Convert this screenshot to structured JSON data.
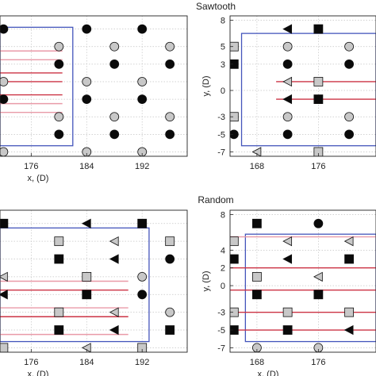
{
  "figure": {
    "section_titles": [
      "Sawtooth",
      "Random"
    ]
  },
  "colors": {
    "gray_fill": "#c8c8c8",
    "black_fill": "#0a0a0a",
    "red_line": "#cc3344",
    "pink_line": "#e99aa8",
    "boundary": "#4455bb"
  },
  "chart_data": [
    {
      "id": "sawtooth_left",
      "type": "scatter",
      "xlabel": "x, (D)",
      "ylabel": "",
      "xticks": [
        176,
        184,
        192
      ],
      "yticks": [],
      "xlim": [
        171.5,
        198.5
      ],
      "ylim": [
        -7.5,
        8.5
      ],
      "grid": true,
      "boundary_box": {
        "x": [
          171.5,
          182
        ],
        "y": [
          -6.3,
          7.2
        ]
      },
      "wake_lines": [
        {
          "y": 4.5,
          "x": [
            171.5,
            180.5
          ],
          "style": "pink"
        },
        {
          "y": 3.5,
          "x": [
            171.5,
            180.5
          ],
          "style": "pink"
        },
        {
          "y": 2.0,
          "x": [
            171.5,
            180.5
          ],
          "style": "red"
        },
        {
          "y": 1.0,
          "x": [
            171.5,
            180.5
          ],
          "style": "red"
        },
        {
          "y": -0.5,
          "x": [
            171.5,
            180.5
          ],
          "style": "red"
        },
        {
          "y": -1.5,
          "x": [
            171.5,
            180.5
          ],
          "style": "pink"
        },
        {
          "y": -2.5,
          "x": [
            171.5,
            180.5
          ],
          "style": "pink"
        }
      ],
      "points": [
        {
          "x": 172,
          "y": 7,
          "marker": "circle",
          "fill": "black"
        },
        {
          "x": 184,
          "y": 7,
          "marker": "circle",
          "fill": "black"
        },
        {
          "x": 192,
          "y": 7,
          "marker": "circle",
          "fill": "black"
        },
        {
          "x": 180,
          "y": 5,
          "marker": "circle",
          "fill": "gray"
        },
        {
          "x": 188,
          "y": 5,
          "marker": "circle",
          "fill": "gray"
        },
        {
          "x": 196,
          "y": 5,
          "marker": "circle",
          "fill": "gray"
        },
        {
          "x": 180,
          "y": 3,
          "marker": "circle",
          "fill": "black"
        },
        {
          "x": 188,
          "y": 3,
          "marker": "circle",
          "fill": "black"
        },
        {
          "x": 196,
          "y": 3,
          "marker": "circle",
          "fill": "black"
        },
        {
          "x": 172,
          "y": 1,
          "marker": "circle",
          "fill": "gray"
        },
        {
          "x": 184,
          "y": 1,
          "marker": "circle",
          "fill": "gray"
        },
        {
          "x": 192,
          "y": 1,
          "marker": "circle",
          "fill": "gray"
        },
        {
          "x": 172,
          "y": -1,
          "marker": "circle",
          "fill": "black"
        },
        {
          "x": 184,
          "y": -1,
          "marker": "circle",
          "fill": "black"
        },
        {
          "x": 192,
          "y": -1,
          "marker": "circle",
          "fill": "black"
        },
        {
          "x": 180,
          "y": -3,
          "marker": "circle",
          "fill": "gray"
        },
        {
          "x": 188,
          "y": -3,
          "marker": "circle",
          "fill": "gray"
        },
        {
          "x": 196,
          "y": -3,
          "marker": "circle",
          "fill": "gray"
        },
        {
          "x": 180,
          "y": -5,
          "marker": "circle",
          "fill": "black"
        },
        {
          "x": 188,
          "y": -5,
          "marker": "circle",
          "fill": "black"
        },
        {
          "x": 196,
          "y": -5,
          "marker": "circle",
          "fill": "black"
        },
        {
          "x": 172,
          "y": -7,
          "marker": "circle",
          "fill": "gray"
        },
        {
          "x": 184,
          "y": -7,
          "marker": "circle",
          "fill": "gray"
        },
        {
          "x": 192,
          "y": -7,
          "marker": "circle",
          "fill": "gray"
        }
      ]
    },
    {
      "id": "sawtooth_right",
      "type": "scatter",
      "xlabel": "",
      "ylabel": "y, (D)",
      "xticks": [
        168,
        176
      ],
      "yticks": [
        8,
        5,
        3,
        0,
        -3,
        -5,
        -7
      ],
      "xlim": [
        164.5,
        183.5
      ],
      "ylim": [
        -7.5,
        8.5
      ],
      "grid": true,
      "boundary_box": {
        "x": [
          166,
          183.5
        ],
        "y": [
          -6.3,
          6.5
        ]
      },
      "wake_lines": [
        {
          "y": 1.0,
          "x": [
            170.5,
            183.5
          ],
          "style": "red"
        },
        {
          "y": -1.0,
          "x": [
            170.5,
            183.5
          ],
          "style": "red"
        }
      ],
      "points": [
        {
          "x": 172,
          "y": 7,
          "marker": "triangle-left",
          "fill": "black"
        },
        {
          "x": 176,
          "y": 7,
          "marker": "square",
          "fill": "black"
        },
        {
          "x": 165,
          "y": 5,
          "marker": "square",
          "fill": "gray"
        },
        {
          "x": 172,
          "y": 5,
          "marker": "circle",
          "fill": "gray"
        },
        {
          "x": 180,
          "y": 5,
          "marker": "circle",
          "fill": "gray"
        },
        {
          "x": 165,
          "y": 3,
          "marker": "square",
          "fill": "black"
        },
        {
          "x": 172,
          "y": 3,
          "marker": "circle",
          "fill": "black"
        },
        {
          "x": 180,
          "y": 3,
          "marker": "circle",
          "fill": "black"
        },
        {
          "x": 172,
          "y": 1,
          "marker": "triangle-left",
          "fill": "gray"
        },
        {
          "x": 176,
          "y": 1,
          "marker": "square",
          "fill": "gray"
        },
        {
          "x": 172,
          "y": -1,
          "marker": "triangle-left",
          "fill": "black"
        },
        {
          "x": 176,
          "y": -1,
          "marker": "square",
          "fill": "black"
        },
        {
          "x": 165,
          "y": -3,
          "marker": "square",
          "fill": "gray"
        },
        {
          "x": 172,
          "y": -3,
          "marker": "circle",
          "fill": "gray"
        },
        {
          "x": 180,
          "y": -3,
          "marker": "circle",
          "fill": "gray"
        },
        {
          "x": 165,
          "y": -5,
          "marker": "circle",
          "fill": "black"
        },
        {
          "x": 172,
          "y": -5,
          "marker": "circle",
          "fill": "black"
        },
        {
          "x": 180,
          "y": -5,
          "marker": "circle",
          "fill": "black"
        },
        {
          "x": 168,
          "y": -7,
          "marker": "triangle-left",
          "fill": "gray"
        },
        {
          "x": 176,
          "y": -7,
          "marker": "square",
          "fill": "gray"
        }
      ]
    },
    {
      "id": "random_left",
      "type": "scatter",
      "xlabel": "x, (D)",
      "ylabel": "",
      "xticks": [
        176,
        184,
        192
      ],
      "yticks": [],
      "xlim": [
        171.5,
        198.5
      ],
      "ylim": [
        -7.5,
        8.5
      ],
      "grid": true,
      "boundary_box": {
        "x": [
          171.5,
          193
        ],
        "y": [
          -6.3,
          6.5
        ]
      },
      "wake_lines": [
        {
          "y": 0.5,
          "x": [
            171.5,
            190
          ],
          "style": "pink"
        },
        {
          "y": -0.5,
          "x": [
            171.5,
            190
          ],
          "style": "red"
        },
        {
          "y": -2.5,
          "x": [
            171.5,
            190
          ],
          "style": "pink"
        },
        {
          "y": -3.5,
          "x": [
            171.5,
            190
          ],
          "style": "red"
        },
        {
          "y": -5.5,
          "x": [
            171.5,
            190
          ],
          "style": "pink"
        }
      ],
      "points": [
        {
          "x": 172,
          "y": 7,
          "marker": "square",
          "fill": "black"
        },
        {
          "x": 184,
          "y": 7,
          "marker": "triangle-left",
          "fill": "black"
        },
        {
          "x": 192,
          "y": 7,
          "marker": "square",
          "fill": "black"
        },
        {
          "x": 180,
          "y": 5,
          "marker": "square",
          "fill": "gray"
        },
        {
          "x": 188,
          "y": 5,
          "marker": "triangle-left",
          "fill": "gray"
        },
        {
          "x": 196,
          "y": 5,
          "marker": "square",
          "fill": "gray"
        },
        {
          "x": 180,
          "y": 3,
          "marker": "square",
          "fill": "black"
        },
        {
          "x": 188,
          "y": 3,
          "marker": "triangle-left",
          "fill": "black"
        },
        {
          "x": 196,
          "y": 3,
          "marker": "circle",
          "fill": "black"
        },
        {
          "x": 172,
          "y": 1,
          "marker": "triangle-left",
          "fill": "gray"
        },
        {
          "x": 184,
          "y": 1,
          "marker": "square",
          "fill": "gray"
        },
        {
          "x": 192,
          "y": 1,
          "marker": "circle",
          "fill": "gray"
        },
        {
          "x": 172,
          "y": -1,
          "marker": "triangle-left",
          "fill": "black"
        },
        {
          "x": 184,
          "y": -1,
          "marker": "square",
          "fill": "black"
        },
        {
          "x": 192,
          "y": -1,
          "marker": "circle",
          "fill": "black"
        },
        {
          "x": 180,
          "y": -3,
          "marker": "square",
          "fill": "gray"
        },
        {
          "x": 188,
          "y": -3,
          "marker": "triangle-left",
          "fill": "gray"
        },
        {
          "x": 196,
          "y": -3,
          "marker": "circle",
          "fill": "gray"
        },
        {
          "x": 180,
          "y": -5,
          "marker": "square",
          "fill": "black"
        },
        {
          "x": 188,
          "y": -5,
          "marker": "triangle-left",
          "fill": "black"
        },
        {
          "x": 196,
          "y": -5,
          "marker": "square",
          "fill": "black"
        },
        {
          "x": 172,
          "y": -7,
          "marker": "square",
          "fill": "gray"
        },
        {
          "x": 184,
          "y": -7,
          "marker": "triangle-left",
          "fill": "gray"
        },
        {
          "x": 192,
          "y": -7,
          "marker": "square",
          "fill": "gray"
        }
      ]
    },
    {
      "id": "random_right",
      "type": "scatter",
      "xlabel": "x, (D)",
      "ylabel": "y, (D)",
      "xticks": [
        168,
        176
      ],
      "yticks": [
        8,
        4,
        2,
        0,
        -3,
        -5,
        -7
      ],
      "xlim": [
        164.5,
        183.5
      ],
      "ylim": [
        -7.5,
        8.5
      ],
      "grid": true,
      "boundary_box": {
        "x": [
          166.5,
          183.5
        ],
        "y": [
          -6.3,
          5.8
        ]
      },
      "wake_lines": [
        {
          "y": 5.5,
          "x": [
            164.5,
            183.5
          ],
          "style": "pink"
        },
        {
          "y": 2.0,
          "x": [
            164.5,
            183.5
          ],
          "style": "red"
        },
        {
          "y": -0.5,
          "x": [
            164.5,
            183.5
          ],
          "style": "red"
        },
        {
          "y": -3.0,
          "x": [
            164.5,
            183.5
          ],
          "style": "red"
        },
        {
          "y": -5.0,
          "x": [
            164.5,
            183.5
          ],
          "style": "red"
        }
      ],
      "points": [
        {
          "x": 168,
          "y": 7,
          "marker": "square",
          "fill": "black"
        },
        {
          "x": 176,
          "y": 7,
          "marker": "circle",
          "fill": "black"
        },
        {
          "x": 165,
          "y": 5,
          "marker": "square",
          "fill": "gray"
        },
        {
          "x": 172,
          "y": 5,
          "marker": "triangle-left",
          "fill": "gray"
        },
        {
          "x": 180,
          "y": 5,
          "marker": "triangle-left",
          "fill": "gray"
        },
        {
          "x": 165,
          "y": 3,
          "marker": "square",
          "fill": "black"
        },
        {
          "x": 172,
          "y": 3,
          "marker": "triangle-left",
          "fill": "black"
        },
        {
          "x": 180,
          "y": 3,
          "marker": "square",
          "fill": "black"
        },
        {
          "x": 168,
          "y": 1,
          "marker": "square",
          "fill": "gray"
        },
        {
          "x": 176,
          "y": 1,
          "marker": "triangle-left",
          "fill": "gray"
        },
        {
          "x": 168,
          "y": -1,
          "marker": "square",
          "fill": "black"
        },
        {
          "x": 176,
          "y": -1,
          "marker": "square",
          "fill": "black"
        },
        {
          "x": 165,
          "y": -3,
          "marker": "square",
          "fill": "gray"
        },
        {
          "x": 172,
          "y": -3,
          "marker": "square",
          "fill": "gray"
        },
        {
          "x": 180,
          "y": -3,
          "marker": "square",
          "fill": "gray"
        },
        {
          "x": 165,
          "y": -5,
          "marker": "square",
          "fill": "black"
        },
        {
          "x": 172,
          "y": -5,
          "marker": "square",
          "fill": "black"
        },
        {
          "x": 180,
          "y": -5,
          "marker": "triangle-left",
          "fill": "black"
        },
        {
          "x": 168,
          "y": -7,
          "marker": "circle",
          "fill": "gray"
        },
        {
          "x": 176,
          "y": -7,
          "marker": "circle",
          "fill": "gray"
        }
      ]
    }
  ]
}
